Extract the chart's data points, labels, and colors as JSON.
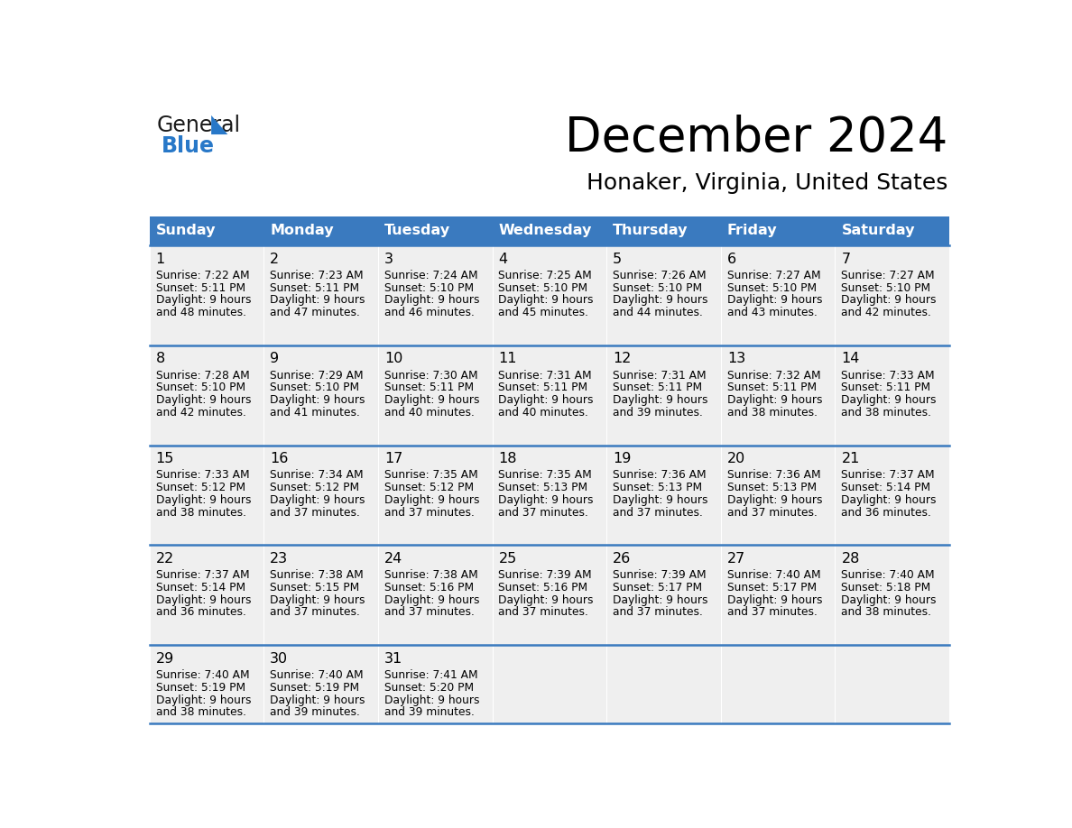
{
  "title": "December 2024",
  "subtitle": "Honaker, Virginia, United States",
  "days_of_week": [
    "Sunday",
    "Monday",
    "Tuesday",
    "Wednesday",
    "Thursday",
    "Friday",
    "Saturday"
  ],
  "header_bg": "#3a7abf",
  "header_text_color": "#FFFFFF",
  "cell_bg": "#EFEFEF",
  "row_line_color": "#3a7abf",
  "text_color": "#000000",
  "logo_general_color": "#1a1a1a",
  "logo_blue_color": "#2878c8",
  "logo_triangle_color": "#2878c8",
  "calendar_data": [
    [
      {
        "day": 1,
        "sunrise": "7:22 AM",
        "sunset": "5:11 PM",
        "dl1": "Daylight: 9 hours",
        "dl2": "and 48 minutes."
      },
      {
        "day": 2,
        "sunrise": "7:23 AM",
        "sunset": "5:11 PM",
        "dl1": "Daylight: 9 hours",
        "dl2": "and 47 minutes."
      },
      {
        "day": 3,
        "sunrise": "7:24 AM",
        "sunset": "5:10 PM",
        "dl1": "Daylight: 9 hours",
        "dl2": "and 46 minutes."
      },
      {
        "day": 4,
        "sunrise": "7:25 AM",
        "sunset": "5:10 PM",
        "dl1": "Daylight: 9 hours",
        "dl2": "and 45 minutes."
      },
      {
        "day": 5,
        "sunrise": "7:26 AM",
        "sunset": "5:10 PM",
        "dl1": "Daylight: 9 hours",
        "dl2": "and 44 minutes."
      },
      {
        "day": 6,
        "sunrise": "7:27 AM",
        "sunset": "5:10 PM",
        "dl1": "Daylight: 9 hours",
        "dl2": "and 43 minutes."
      },
      {
        "day": 7,
        "sunrise": "7:27 AM",
        "sunset": "5:10 PM",
        "dl1": "Daylight: 9 hours",
        "dl2": "and 42 minutes."
      }
    ],
    [
      {
        "day": 8,
        "sunrise": "7:28 AM",
        "sunset": "5:10 PM",
        "dl1": "Daylight: 9 hours",
        "dl2": "and 42 minutes."
      },
      {
        "day": 9,
        "sunrise": "7:29 AM",
        "sunset": "5:10 PM",
        "dl1": "Daylight: 9 hours",
        "dl2": "and 41 minutes."
      },
      {
        "day": 10,
        "sunrise": "7:30 AM",
        "sunset": "5:11 PM",
        "dl1": "Daylight: 9 hours",
        "dl2": "and 40 minutes."
      },
      {
        "day": 11,
        "sunrise": "7:31 AM",
        "sunset": "5:11 PM",
        "dl1": "Daylight: 9 hours",
        "dl2": "and 40 minutes."
      },
      {
        "day": 12,
        "sunrise": "7:31 AM",
        "sunset": "5:11 PM",
        "dl1": "Daylight: 9 hours",
        "dl2": "and 39 minutes."
      },
      {
        "day": 13,
        "sunrise": "7:32 AM",
        "sunset": "5:11 PM",
        "dl1": "Daylight: 9 hours",
        "dl2": "and 38 minutes."
      },
      {
        "day": 14,
        "sunrise": "7:33 AM",
        "sunset": "5:11 PM",
        "dl1": "Daylight: 9 hours",
        "dl2": "and 38 minutes."
      }
    ],
    [
      {
        "day": 15,
        "sunrise": "7:33 AM",
        "sunset": "5:12 PM",
        "dl1": "Daylight: 9 hours",
        "dl2": "and 38 minutes."
      },
      {
        "day": 16,
        "sunrise": "7:34 AM",
        "sunset": "5:12 PM",
        "dl1": "Daylight: 9 hours",
        "dl2": "and 37 minutes."
      },
      {
        "day": 17,
        "sunrise": "7:35 AM",
        "sunset": "5:12 PM",
        "dl1": "Daylight: 9 hours",
        "dl2": "and 37 minutes."
      },
      {
        "day": 18,
        "sunrise": "7:35 AM",
        "sunset": "5:13 PM",
        "dl1": "Daylight: 9 hours",
        "dl2": "and 37 minutes."
      },
      {
        "day": 19,
        "sunrise": "7:36 AM",
        "sunset": "5:13 PM",
        "dl1": "Daylight: 9 hours",
        "dl2": "and 37 minutes."
      },
      {
        "day": 20,
        "sunrise": "7:36 AM",
        "sunset": "5:13 PM",
        "dl1": "Daylight: 9 hours",
        "dl2": "and 37 minutes."
      },
      {
        "day": 21,
        "sunrise": "7:37 AM",
        "sunset": "5:14 PM",
        "dl1": "Daylight: 9 hours",
        "dl2": "and 36 minutes."
      }
    ],
    [
      {
        "day": 22,
        "sunrise": "7:37 AM",
        "sunset": "5:14 PM",
        "dl1": "Daylight: 9 hours",
        "dl2": "and 36 minutes."
      },
      {
        "day": 23,
        "sunrise": "7:38 AM",
        "sunset": "5:15 PM",
        "dl1": "Daylight: 9 hours",
        "dl2": "and 37 minutes."
      },
      {
        "day": 24,
        "sunrise": "7:38 AM",
        "sunset": "5:16 PM",
        "dl1": "Daylight: 9 hours",
        "dl2": "and 37 minutes."
      },
      {
        "day": 25,
        "sunrise": "7:39 AM",
        "sunset": "5:16 PM",
        "dl1": "Daylight: 9 hours",
        "dl2": "and 37 minutes."
      },
      {
        "day": 26,
        "sunrise": "7:39 AM",
        "sunset": "5:17 PM",
        "dl1": "Daylight: 9 hours",
        "dl2": "and 37 minutes."
      },
      {
        "day": 27,
        "sunrise": "7:40 AM",
        "sunset": "5:17 PM",
        "dl1": "Daylight: 9 hours",
        "dl2": "and 37 minutes."
      },
      {
        "day": 28,
        "sunrise": "7:40 AM",
        "sunset": "5:18 PM",
        "dl1": "Daylight: 9 hours",
        "dl2": "and 38 minutes."
      }
    ],
    [
      {
        "day": 29,
        "sunrise": "7:40 AM",
        "sunset": "5:19 PM",
        "dl1": "Daylight: 9 hours",
        "dl2": "and 38 minutes."
      },
      {
        "day": 30,
        "sunrise": "7:40 AM",
        "sunset": "5:19 PM",
        "dl1": "Daylight: 9 hours",
        "dl2": "and 39 minutes."
      },
      {
        "day": 31,
        "sunrise": "7:41 AM",
        "sunset": "5:20 PM",
        "dl1": "Daylight: 9 hours",
        "dl2": "and 39 minutes."
      },
      null,
      null,
      null,
      null
    ]
  ]
}
